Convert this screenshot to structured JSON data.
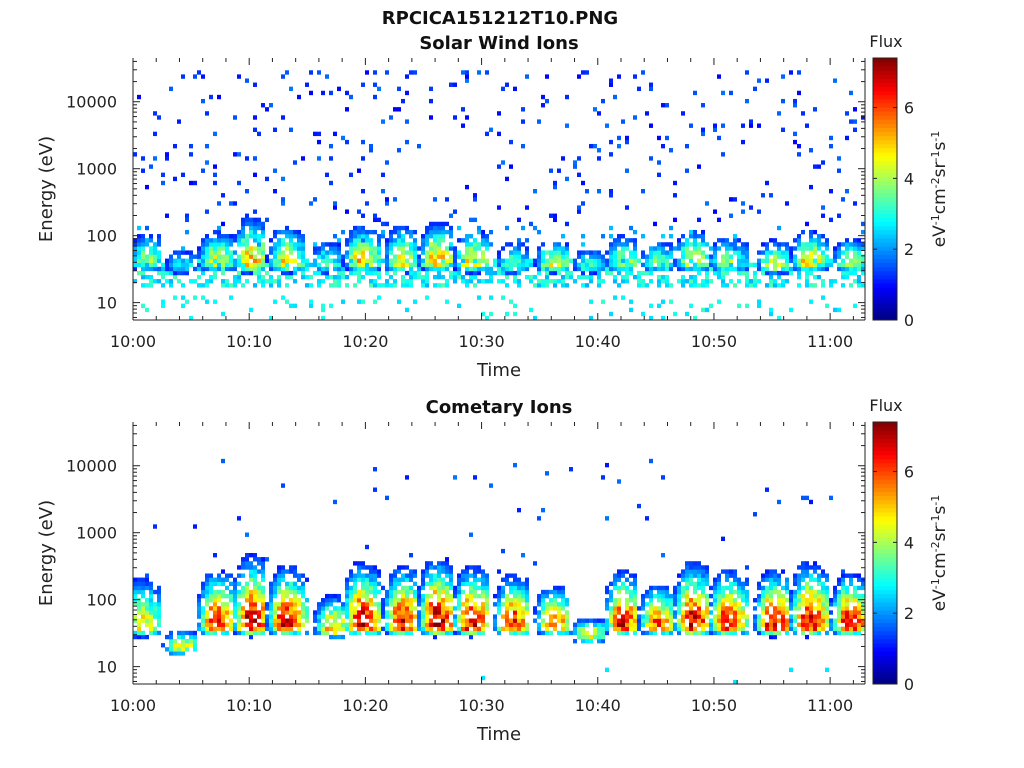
{
  "figure": {
    "title": "RPCICA151212T10.PNG"
  },
  "chart_data": [
    {
      "type": "heatmap",
      "title": "Solar Wind Ions",
      "xlabel": "Time",
      "ylabel": "Energy (eV)",
      "x_ticks": [
        "10:00",
        "10:10",
        "10:20",
        "10:30",
        "10:40",
        "10:50",
        "11:00"
      ],
      "x_range_min": [
        0,
        63
      ],
      "y_ticks": [
        10,
        100,
        1000,
        10000
      ],
      "y_range_eV": [
        5.5,
        45000
      ],
      "y_scale": "log",
      "colorbar": {
        "label": "Flux",
        "unit_label": "eV-1cm-2sr-1s-1",
        "ticks": [
          0,
          2,
          4,
          6
        ],
        "range": [
          0,
          7.4
        ],
        "colormap": "jet"
      },
      "bursts": [
        {
          "t": 1.0,
          "peak": 40,
          "amp": 4.0,
          "top": 150
        },
        {
          "t": 4.0,
          "peak": 35,
          "amp": 2.8,
          "top": 80
        },
        {
          "t": 7.0,
          "peak": 40,
          "amp": 4.6,
          "top": 150
        },
        {
          "t": 10.0,
          "peak": 38,
          "amp": 5.2,
          "top": 260
        },
        {
          "t": 13.0,
          "peak": 38,
          "amp": 4.8,
          "top": 180
        },
        {
          "t": 16.5,
          "peak": 36,
          "amp": 3.2,
          "top": 120
        },
        {
          "t": 19.5,
          "peak": 40,
          "amp": 5.0,
          "top": 180
        },
        {
          "t": 23.0,
          "peak": 38,
          "amp": 4.6,
          "top": 200
        },
        {
          "t": 26.0,
          "peak": 40,
          "amp": 5.2,
          "top": 210
        },
        {
          "t": 29.0,
          "peak": 38,
          "amp": 5.0,
          "top": 160
        },
        {
          "t": 32.5,
          "peak": 36,
          "amp": 3.4,
          "top": 110
        },
        {
          "t": 36.0,
          "peak": 38,
          "amp": 4.6,
          "top": 100
        },
        {
          "t": 39.0,
          "peak": 36,
          "amp": 3.2,
          "top": 80
        },
        {
          "t": 42.0,
          "peak": 38,
          "amp": 4.2,
          "top": 130
        },
        {
          "t": 45.0,
          "peak": 38,
          "amp": 3.6,
          "top": 110
        },
        {
          "t": 48.0,
          "peak": 40,
          "amp": 4.6,
          "top": 160
        },
        {
          "t": 51.0,
          "peak": 38,
          "amp": 4.0,
          "top": 130
        },
        {
          "t": 55.0,
          "peak": 36,
          "amp": 4.2,
          "top": 110
        },
        {
          "t": 58.0,
          "peak": 40,
          "amp": 5.0,
          "top": 150
        },
        {
          "t": 61.5,
          "peak": 38,
          "amp": 4.2,
          "top": 120
        }
      ]
    },
    {
      "type": "heatmap",
      "title": "Cometary Ions",
      "xlabel": "Time",
      "ylabel": "Energy (eV)",
      "x_ticks": [
        "10:00",
        "10:10",
        "10:20",
        "10:30",
        "10:40",
        "10:50",
        "11:00"
      ],
      "x_range_min": [
        0,
        63
      ],
      "y_ticks": [
        10,
        100,
        1000,
        10000
      ],
      "y_range_eV": [
        5.5,
        45000
      ],
      "y_scale": "log",
      "colorbar": {
        "label": "Flux",
        "unit_label": "eV-1cm-2sr-1s-1",
        "ticks": [
          0,
          2,
          4,
          6
        ],
        "range": [
          0,
          7.4
        ],
        "colormap": "jet"
      },
      "bursts": [
        {
          "t": 0.5,
          "peak": 38,
          "amp": 5.0,
          "top": 300
        },
        {
          "t": 4.0,
          "peak": 20,
          "amp": 4.8,
          "top": 40
        },
        {
          "t": 7.0,
          "peak": 40,
          "amp": 6.6,
          "top": 350
        },
        {
          "t": 10.0,
          "peak": 40,
          "amp": 7.0,
          "top": 600
        },
        {
          "t": 13.0,
          "peak": 40,
          "amp": 6.8,
          "top": 400
        },
        {
          "t": 17.0,
          "peak": 36,
          "amp": 5.2,
          "top": 150
        },
        {
          "t": 19.5,
          "peak": 40,
          "amp": 7.0,
          "top": 450
        },
        {
          "t": 23.0,
          "peak": 40,
          "amp": 6.8,
          "top": 400
        },
        {
          "t": 26.0,
          "peak": 40,
          "amp": 7.0,
          "top": 550
        },
        {
          "t": 29.0,
          "peak": 40,
          "amp": 7.0,
          "top": 400
        },
        {
          "t": 32.5,
          "peak": 40,
          "amp": 6.6,
          "top": 280
        },
        {
          "t": 36.0,
          "peak": 40,
          "amp": 6.0,
          "top": 200
        },
        {
          "t": 39.0,
          "peak": 30,
          "amp": 5.0,
          "top": 60
        },
        {
          "t": 42.0,
          "peak": 40,
          "amp": 6.6,
          "top": 350
        },
        {
          "t": 45.0,
          "peak": 40,
          "amp": 6.2,
          "top": 200
        },
        {
          "t": 48.0,
          "peak": 40,
          "amp": 7.0,
          "top": 450
        },
        {
          "t": 51.0,
          "peak": 40,
          "amp": 6.8,
          "top": 350
        },
        {
          "t": 55.0,
          "peak": 40,
          "amp": 7.0,
          "top": 350
        },
        {
          "t": 58.0,
          "peak": 40,
          "amp": 7.0,
          "top": 450
        },
        {
          "t": 61.5,
          "peak": 40,
          "amp": 6.8,
          "top": 300
        }
      ]
    }
  ]
}
